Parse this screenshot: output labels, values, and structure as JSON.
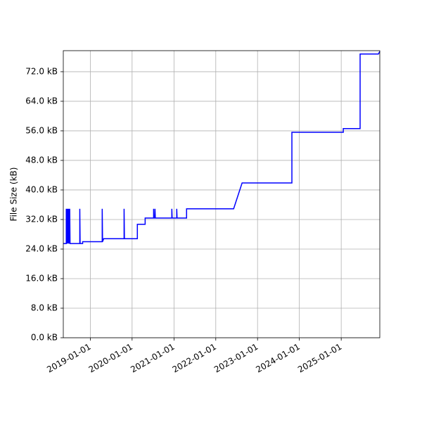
{
  "chart_data": {
    "type": "line",
    "ylabel": "File Size (kB)",
    "grid": true,
    "color": "blue",
    "xlim": [
      "2018-05-10",
      "2025-12-04"
    ],
    "xticks": [
      "2019-01-01",
      "2020-01-01",
      "2021-01-01",
      "2022-01-01",
      "2023-01-01",
      "2024-01-01",
      "2025-01-01"
    ],
    "ylim": [
      0,
      77.7
    ],
    "yticks": [
      {
        "value": 0,
        "label": "0.0 kB"
      },
      {
        "value": 8,
        "label": "8.0 kB"
      },
      {
        "value": 16,
        "label": "16.0 kB"
      },
      {
        "value": 24,
        "label": "24.0 kB"
      },
      {
        "value": 32,
        "label": "32.0 kB"
      },
      {
        "value": 40,
        "label": "40.0 kB"
      },
      {
        "value": 48,
        "label": "48.0 kB"
      },
      {
        "value": 56,
        "label": "56.0 kB"
      },
      {
        "value": 64,
        "label": "64.0 kB"
      },
      {
        "value": 72,
        "label": "72.0 kB"
      }
    ],
    "x": [
      "2018-05-10",
      "2018-06-05",
      "2018-06-05",
      "2018-06-08",
      "2018-06-11",
      "2018-06-14",
      "2018-06-17",
      "2018-06-23",
      "2018-06-26",
      "2018-06-29",
      "2018-07-05",
      "2018-07-08",
      "2018-10-01",
      "2018-10-01",
      "2018-10-04",
      "2018-10-26",
      "2018-10-26",
      "2019-04-15",
      "2019-04-15",
      "2019-04-18",
      "2019-04-28",
      "2019-10-23",
      "2019-10-23",
      "2019-10-26",
      "2020-02-16",
      "2020-02-16",
      "2020-04-24",
      "2020-04-24",
      "2020-07-07",
      "2020-07-07",
      "2020-07-10",
      "2020-07-19",
      "2020-07-19",
      "2020-07-22",
      "2020-12-13",
      "2020-12-13",
      "2020-12-16",
      "2021-01-25",
      "2021-01-25",
      "2021-01-28",
      "2021-04-21",
      "2021-04-21",
      "2022-06-06",
      "2022-08-19",
      "2023-10-28",
      "2023-10-28",
      "2025-01-19",
      "2025-01-19",
      "2025-06-15",
      "2025-06-15",
      "2025-11-22",
      "2025-12-04"
    ],
    "values": [
      25.5,
      25.5,
      34.9,
      25.5,
      34.9,
      25.5,
      34.9,
      25.5,
      34.9,
      25.5,
      34.9,
      25.5,
      25.5,
      34.9,
      25.5,
      25.5,
      26.0,
      26.0,
      34.9,
      26.0,
      26.8,
      26.8,
      34.9,
      26.8,
      26.8,
      30.7,
      30.7,
      32.4,
      32.4,
      34.9,
      32.4,
      32.4,
      34.9,
      32.4,
      32.4,
      34.9,
      32.4,
      32.4,
      34.9,
      32.4,
      32.4,
      34.9,
      34.9,
      41.9,
      41.9,
      55.6,
      55.6,
      56.6,
      56.6,
      76.8,
      76.8,
      77.5
    ]
  }
}
